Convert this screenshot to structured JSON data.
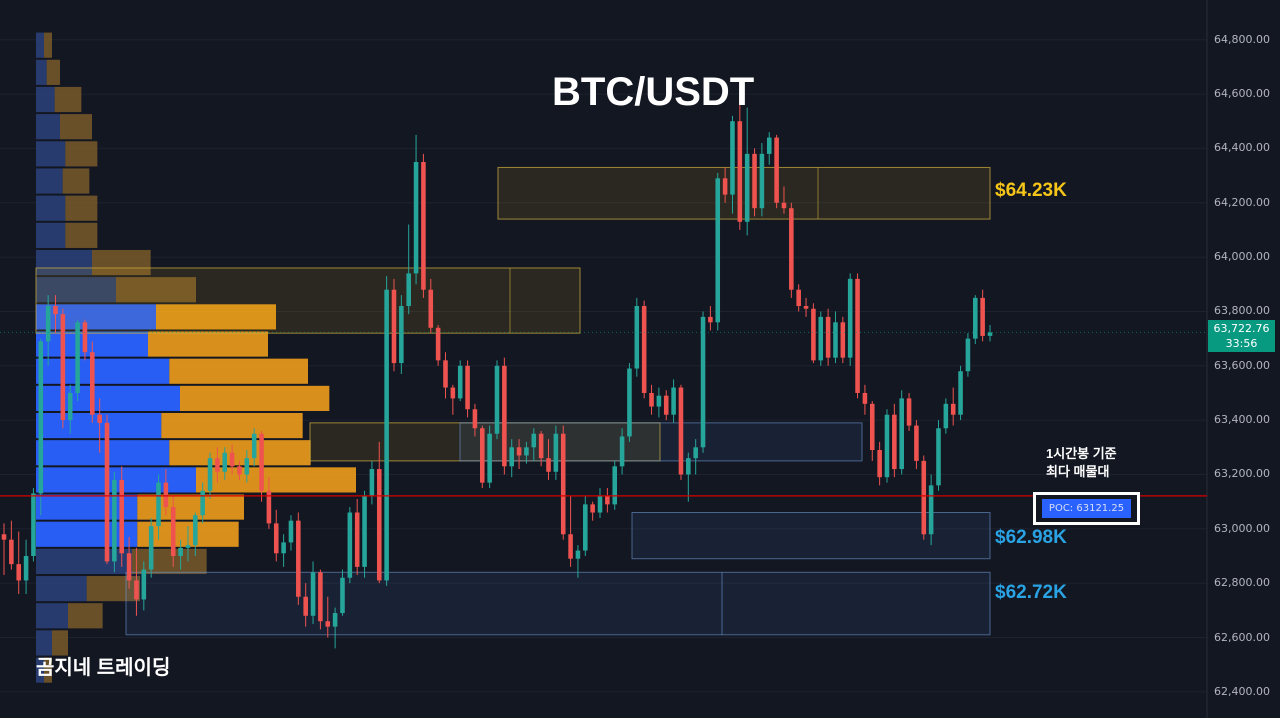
{
  "chart_data": {
    "type": "candlestick",
    "title": "BTC/USDT",
    "y_ticks": [
      "64,800.00",
      "64,600.00",
      "64,400.00",
      "64,200.00",
      "64,000.00",
      "63,800.00",
      "63,600.00",
      "63,400.00",
      "63,200.00",
      "63,000.00",
      "62,800.00",
      "62,600.00",
      "62,400.00"
    ],
    "ylim": [
      62370,
      64880
    ],
    "current_price": {
      "price": "63,722.76",
      "countdown": "33:56",
      "value": 63722.76
    },
    "poc": {
      "label": "POC: 63121.25",
      "value": 63121.25,
      "color": "#d50000"
    },
    "annotation": {
      "line1": "1시간봉 기준",
      "line2": "최다 매물대"
    },
    "zone_labels": [
      {
        "text": "$64.23K",
        "color": "#f5c518",
        "value": 64230
      },
      {
        "text": "$62.98K",
        "color": "#29a3e3",
        "value": 62980
      },
      {
        "text": "$62.72K",
        "color": "#29a3e3",
        "value": 62720
      }
    ],
    "zones": [
      {
        "kind": "supply",
        "top": 64330,
        "bottom": 64140
      },
      {
        "kind": "supply",
        "top": 63960,
        "bottom": 63720
      },
      {
        "kind": "supply",
        "top": 63390,
        "bottom": 63250
      },
      {
        "kind": "demand",
        "top": 63390,
        "bottom": 63250
      },
      {
        "kind": "demand",
        "top": 63060,
        "bottom": 62890
      },
      {
        "kind": "demand",
        "top": 62840,
        "bottom": 62610
      }
    ],
    "volume_profile": [
      {
        "price": 64780,
        "buy": 3,
        "sell": 3
      },
      {
        "price": 64680,
        "buy": 4,
        "sell": 5
      },
      {
        "price": 64580,
        "buy": 7,
        "sell": 10
      },
      {
        "price": 64480,
        "buy": 9,
        "sell": 12
      },
      {
        "price": 64380,
        "buy": 11,
        "sell": 12
      },
      {
        "price": 64280,
        "buy": 10,
        "sell": 10
      },
      {
        "price": 64180,
        "buy": 11,
        "sell": 12
      },
      {
        "price": 64080,
        "buy": 11,
        "sell": 12
      },
      {
        "price": 63980,
        "buy": 21,
        "sell": 22
      },
      {
        "price": 63880,
        "buy": 30,
        "sell": 30
      },
      {
        "price": 63780,
        "buy": 45,
        "sell": 45
      },
      {
        "price": 63680,
        "buy": 42,
        "sell": 45
      },
      {
        "price": 63580,
        "buy": 50,
        "sell": 52
      },
      {
        "price": 63480,
        "buy": 54,
        "sell": 56
      },
      {
        "price": 63380,
        "buy": 47,
        "sell": 53
      },
      {
        "price": 63280,
        "buy": 50,
        "sell": 53
      },
      {
        "price": 63180,
        "buy": 60,
        "sell": 60
      },
      {
        "price": 63080,
        "buy": 38,
        "sell": 40
      },
      {
        "price": 62980,
        "buy": 38,
        "sell": 38
      },
      {
        "price": 62880,
        "buy": 36,
        "sell": 28
      },
      {
        "price": 62780,
        "buy": 19,
        "sell": 20
      },
      {
        "price": 62680,
        "buy": 12,
        "sell": 13
      },
      {
        "price": 62580,
        "buy": 6,
        "sell": 6
      },
      {
        "price": 62480,
        "buy": 3,
        "sell": 3
      }
    ],
    "candles": [
      [
        62980,
        63020,
        62830,
        62960
      ],
      [
        62960,
        63030,
        62850,
        62870
      ],
      [
        62870,
        62990,
        62760,
        62810
      ],
      [
        62810,
        62960,
        62760,
        62900
      ],
      [
        62900,
        63150,
        62880,
        63130
      ],
      [
        63130,
        63700,
        63050,
        63690
      ],
      [
        63690,
        63860,
        63600,
        63820
      ],
      [
        63820,
        63860,
        63720,
        63790
      ],
      [
        63790,
        63810,
        63370,
        63400
      ],
      [
        63400,
        63530,
        63350,
        63500
      ],
      [
        63500,
        63770,
        63470,
        63760
      ],
      [
        63760,
        63770,
        63620,
        63650
      ],
      [
        63650,
        63690,
        63390,
        63420
      ],
      [
        63420,
        63480,
        63280,
        63390
      ],
      [
        63390,
        63420,
        62870,
        62880
      ],
      [
        62880,
        63210,
        62840,
        63180
      ],
      [
        63180,
        63230,
        62860,
        62910
      ],
      [
        62910,
        62970,
        62780,
        62810
      ],
      [
        62810,
        62930,
        62680,
        62740
      ],
      [
        62740,
        62880,
        62700,
        62850
      ],
      [
        62850,
        63040,
        62820,
        63010
      ],
      [
        63010,
        63200,
        62960,
        63170
      ],
      [
        63170,
        63220,
        63050,
        63080
      ],
      [
        63080,
        63120,
        62860,
        62900
      ],
      [
        62900,
        62960,
        62850,
        62930
      ],
      [
        62930,
        63010,
        62880,
        62940
      ],
      [
        62940,
        63060,
        62900,
        63050
      ],
      [
        63050,
        63170,
        63020,
        63140
      ],
      [
        63140,
        63280,
        63110,
        63260
      ],
      [
        63260,
        63300,
        63170,
        63210
      ],
      [
        63210,
        63300,
        63180,
        63280
      ],
      [
        63280,
        63310,
        63200,
        63230
      ],
      [
        63230,
        63250,
        63180,
        63200
      ],
      [
        63200,
        63290,
        63170,
        63260
      ],
      [
        63260,
        63370,
        63230,
        63350
      ],
      [
        63350,
        63360,
        63100,
        63140
      ],
      [
        63140,
        63190,
        63000,
        63020
      ],
      [
        63020,
        63070,
        62880,
        62910
      ],
      [
        62910,
        62980,
        62860,
        62950
      ],
      [
        62950,
        63050,
        62920,
        63030
      ],
      [
        63030,
        63060,
        62720,
        62750
      ],
      [
        62750,
        62800,
        62640,
        62680
      ],
      [
        62680,
        62880,
        62650,
        62840
      ],
      [
        62840,
        62850,
        62630,
        62660
      ],
      [
        62660,
        62750,
        62600,
        62640
      ],
      [
        62640,
        62710,
        62560,
        62690
      ],
      [
        62690,
        62850,
        62680,
        62820
      ],
      [
        62820,
        63080,
        62800,
        63060
      ],
      [
        63060,
        63110,
        62830,
        62860
      ],
      [
        62860,
        63140,
        62820,
        63120
      ],
      [
        63120,
        63250,
        63090,
        63220
      ],
      [
        63220,
        63320,
        62800,
        62810
      ],
      [
        62810,
        63930,
        62790,
        63880
      ],
      [
        63880,
        63920,
        63580,
        63610
      ],
      [
        63610,
        63860,
        63570,
        63820
      ],
      [
        63820,
        64120,
        63790,
        63940
      ],
      [
        63940,
        64450,
        63900,
        64350
      ],
      [
        64350,
        64380,
        63850,
        63880
      ],
      [
        63880,
        63920,
        63720,
        63740
      ],
      [
        63740,
        63750,
        63600,
        63620
      ],
      [
        63620,
        63650,
        63480,
        63520
      ],
      [
        63520,
        63530,
        63420,
        63480
      ],
      [
        63480,
        63620,
        63470,
        63600
      ],
      [
        63600,
        63620,
        63410,
        63440
      ],
      [
        63440,
        63460,
        63340,
        63370
      ],
      [
        63370,
        63380,
        63150,
        63170
      ],
      [
        63170,
        63380,
        63150,
        63350
      ],
      [
        63350,
        63620,
        63330,
        63600
      ],
      [
        63600,
        63630,
        63200,
        63230
      ],
      [
        63230,
        63330,
        63190,
        63300
      ],
      [
        63300,
        63330,
        63220,
        63270
      ],
      [
        63270,
        63320,
        63240,
        63300
      ],
      [
        63300,
        63370,
        63250,
        63350
      ],
      [
        63350,
        63360,
        63230,
        63260
      ],
      [
        63260,
        63330,
        63180,
        63210
      ],
      [
        63210,
        63380,
        63180,
        63350
      ],
      [
        63350,
        63380,
        62960,
        62980
      ],
      [
        62980,
        63120,
        62860,
        62890
      ],
      [
        62890,
        62940,
        62820,
        62920
      ],
      [
        62920,
        63120,
        62900,
        63090
      ],
      [
        63090,
        63100,
        63030,
        63060
      ],
      [
        63060,
        63150,
        63040,
        63120
      ],
      [
        63120,
        63150,
        63060,
        63090
      ],
      [
        63090,
        63250,
        63070,
        63230
      ],
      [
        63230,
        63370,
        63200,
        63340
      ],
      [
        63340,
        63610,
        63320,
        63590
      ],
      [
        63590,
        63850,
        63560,
        63820
      ],
      [
        63820,
        63840,
        63480,
        63500
      ],
      [
        63500,
        63530,
        63420,
        63450
      ],
      [
        63450,
        63520,
        63410,
        63490
      ],
      [
        63490,
        63510,
        63400,
        63420
      ],
      [
        63420,
        63550,
        63390,
        63520
      ],
      [
        63520,
        63530,
        63180,
        63200
      ],
      [
        63200,
        63280,
        63100,
        63260
      ],
      [
        63260,
        63330,
        63200,
        63300
      ],
      [
        63300,
        63800,
        63280,
        63780
      ],
      [
        63780,
        63820,
        63730,
        63760
      ],
      [
        63760,
        64310,
        63730,
        64290
      ],
      [
        64290,
        64330,
        64200,
        64230
      ],
      [
        64230,
        64520,
        64160,
        64500
      ],
      [
        64500,
        64600,
        64100,
        64130
      ],
      [
        64130,
        64550,
        64080,
        64380
      ],
      [
        64380,
        64400,
        64150,
        64180
      ],
      [
        64180,
        64420,
        64150,
        64380
      ],
      [
        64380,
        64460,
        64340,
        64440
      ],
      [
        64440,
        64450,
        64180,
        64200
      ],
      [
        64200,
        64260,
        64160,
        64180
      ],
      [
        64180,
        64200,
        63850,
        63880
      ],
      [
        63880,
        63900,
        63800,
        63820
      ],
      [
        63820,
        63850,
        63780,
        63810
      ],
      [
        63810,
        63830,
        63610,
        63620
      ],
      [
        63620,
        63800,
        63600,
        63780
      ],
      [
        63780,
        63810,
        63600,
        63630
      ],
      [
        63630,
        63800,
        63610,
        63760
      ],
      [
        63760,
        63780,
        63610,
        63630
      ],
      [
        63630,
        63940,
        63600,
        63920
      ],
      [
        63920,
        63940,
        63480,
        63500
      ],
      [
        63500,
        63530,
        63420,
        63460
      ],
      [
        63460,
        63470,
        63250,
        63290
      ],
      [
        63290,
        63320,
        63160,
        63190
      ],
      [
        63190,
        63440,
        63170,
        63420
      ],
      [
        63420,
        63460,
        63190,
        63220
      ],
      [
        63220,
        63510,
        63200,
        63480
      ],
      [
        63480,
        63500,
        63360,
        63380
      ],
      [
        63380,
        63400,
        63220,
        63250
      ],
      [
        63250,
        63270,
        62960,
        62980
      ],
      [
        62980,
        63200,
        62940,
        63160
      ],
      [
        63160,
        63400,
        63140,
        63370
      ],
      [
        63370,
        63480,
        63350,
        63460
      ],
      [
        63460,
        63520,
        63380,
        63420
      ],
      [
        63420,
        63600,
        63400,
        63580
      ],
      [
        63580,
        63720,
        63560,
        63700
      ],
      [
        63700,
        63860,
        63680,
        63850
      ],
      [
        63850,
        63880,
        63690,
        63710
      ],
      [
        63710,
        63750,
        63690,
        63722.76
      ]
    ]
  }
}
